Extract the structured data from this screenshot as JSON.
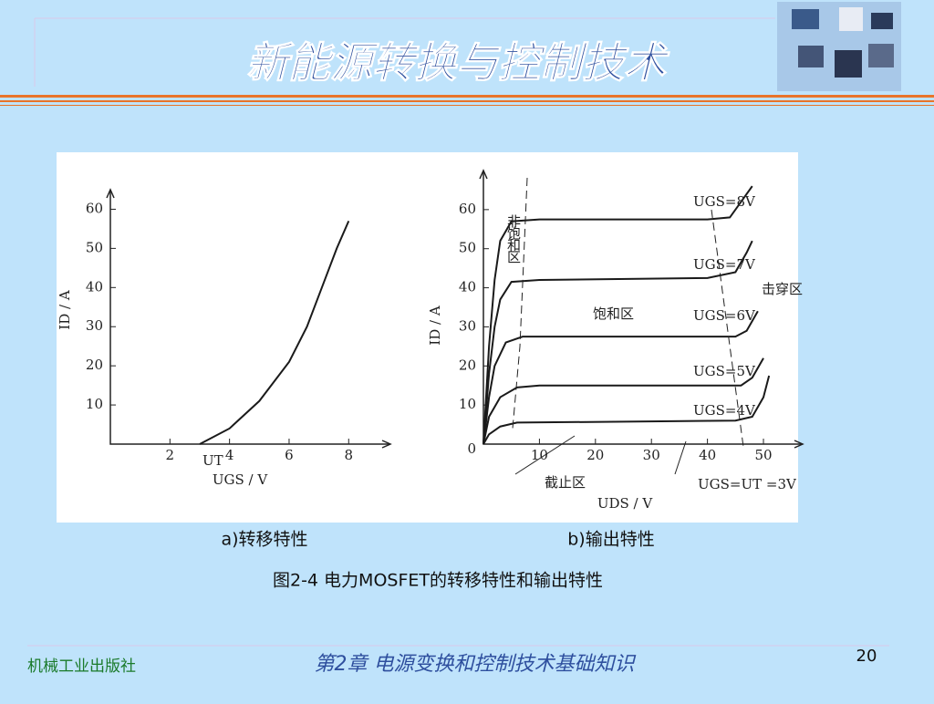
{
  "header": {
    "title": "新能源转换与控制技术"
  },
  "chart_data": [
    {
      "type": "line",
      "x_label": "UGS / V",
      "y_label": "ID / A",
      "annotations": [
        "UT"
      ],
      "xlim": [
        0,
        9.4
      ],
      "ylim": [
        0,
        65
      ],
      "xticks": [
        2,
        4,
        6,
        8
      ],
      "yticks": [
        10,
        20,
        30,
        40,
        50,
        60
      ],
      "series": [
        {
          "name": null,
          "color": "#1a1a1a",
          "x": [
            3,
            4,
            5,
            6,
            6.6,
            7.1,
            7.6,
            8
          ],
          "values": [
            0,
            4,
            11,
            21,
            30,
            40,
            50,
            57
          ]
        }
      ]
    },
    {
      "type": "line",
      "x_label": "UDS / V",
      "y_label": "ID / A",
      "annotations": [
        "非饱和区",
        "饱和区",
        "击穿区",
        "截止区",
        "UGS=UT =3V"
      ],
      "xlim": [
        0,
        57
      ],
      "ylim": [
        0,
        70
      ],
      "xticks": [
        10,
        20,
        30,
        40,
        50
      ],
      "yticks": [
        0,
        10,
        20,
        30,
        40,
        50,
        60
      ],
      "series": [
        {
          "name": "UGS=8V",
          "color": "#1a1a1a",
          "x": [
            0,
            1,
            2,
            3,
            5,
            10,
            40,
            44,
            46,
            48
          ],
          "values": [
            0,
            25,
            42,
            52,
            57,
            57.5,
            57.5,
            58,
            62,
            66
          ]
        },
        {
          "name": "UGS=7V",
          "color": "#1a1a1a",
          "x": [
            0,
            1,
            2,
            3,
            5,
            10,
            40,
            45,
            47,
            48
          ],
          "values": [
            0,
            18,
            30,
            37,
            41.5,
            42,
            42.5,
            44,
            49,
            52
          ]
        },
        {
          "name": "UGS=6V",
          "color": "#1a1a1a",
          "x": [
            0,
            1,
            2,
            4,
            7,
            45,
            47,
            49
          ],
          "values": [
            0,
            12,
            20,
            26,
            27.5,
            27.5,
            29,
            34
          ]
        },
        {
          "name": "UGS=5V",
          "color": "#1a1a1a",
          "x": [
            0,
            1,
            3,
            6,
            10,
            46,
            48,
            50
          ],
          "values": [
            0,
            7,
            12,
            14.5,
            15,
            15,
            17,
            22
          ]
        },
        {
          "name": "UGS=4V",
          "color": "#1a1a1a",
          "x": [
            0,
            1,
            3,
            6,
            45,
            48,
            50,
            51
          ],
          "values": [
            0,
            2.5,
            4.5,
            5.5,
            6,
            7,
            12,
            17.5
          ]
        }
      ]
    }
  ],
  "figure": {
    "captions": [
      "a)转移特性",
      "b)输出特性"
    ],
    "title": "图2-4  电力MOSFET的转移特性和输出特性"
  },
  "footer": {
    "publisher": "机械工业出版社",
    "chapter": "第2章  电源变换和控制技术基础知识",
    "page": "20"
  }
}
